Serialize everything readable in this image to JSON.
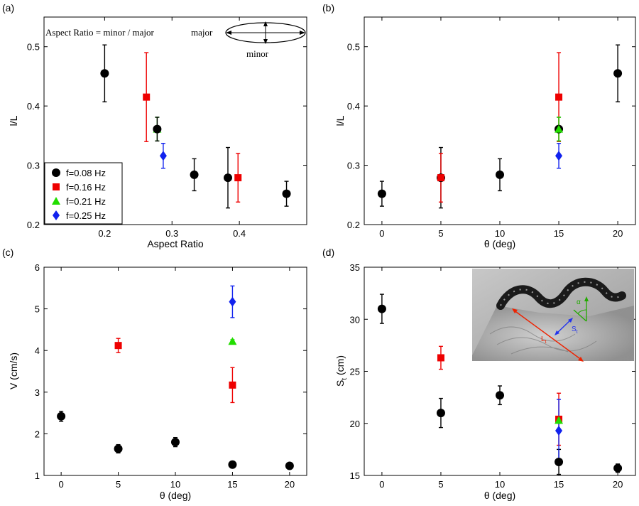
{
  "colors": {
    "c008": "#000000",
    "c016": "#ee0000",
    "c021": "#22dd00",
    "c025": "#1122ee"
  },
  "legend_entries": [
    {
      "label": "f=0.08 Hz",
      "color": "#000000",
      "marker": "circle"
    },
    {
      "label": "f=0.16 Hz",
      "color": "#ee0000",
      "marker": "square"
    },
    {
      "label": "f=0.21 Hz",
      "color": "#22dd00",
      "marker": "triangle"
    },
    {
      "label": "f=0.25 Hz",
      "color": "#1122ee",
      "marker": "diamond"
    }
  ],
  "annotation": {
    "formula": "Aspect Ratio = minor / major",
    "major": "major",
    "minor": "minor"
  },
  "inset": {
    "label_alpha": "α",
    "label_lt": "L",
    "label_lt_sub": "t",
    "label_st": "S",
    "label_st_sub": "t"
  },
  "chart_data": [
    {
      "panel": "(a)",
      "type": "scatter",
      "xlabel": "Aspect Ratio",
      "ylabel": "l/L",
      "xlim": [
        0.11,
        0.5
      ],
      "ylim": [
        0.2,
        0.55
      ],
      "xticks": [
        0.2,
        0.3,
        0.4
      ],
      "xticklabels": [
        "0.2",
        "0.3",
        "0.4"
      ],
      "yticks": [
        0.2,
        0.3,
        0.4,
        0.5
      ],
      "yticklabels": [
        "0.2",
        "0.3",
        "0.4",
        "0.5"
      ],
      "legend": "bottom-left",
      "series": [
        {
          "name": "f=0.08 Hz",
          "marker": "circle",
          "color": "#000000",
          "points": [
            {
              "x": 0.2,
              "y": 0.455,
              "err": 0.048
            },
            {
              "x": 0.333,
              "y": 0.284,
              "err": 0.027
            },
            {
              "x": 0.383,
              "y": 0.279,
              "err": 0.051
            },
            {
              "x": 0.47,
              "y": 0.252,
              "err": 0.021
            }
          ]
        },
        {
          "name": "f=0.16 Hz",
          "marker": "square",
          "color": "#ee0000",
          "points": [
            {
              "x": 0.262,
              "y": 0.415,
              "err": 0.075
            },
            {
              "x": 0.398,
              "y": 0.279,
              "err": 0.041
            }
          ]
        },
        {
          "name": "f=0.21 Hz",
          "marker": "triangle",
          "color": "#22dd00",
          "points": [
            {
              "x": 0.278,
              "y": 0.361,
              "err": 0.02
            }
          ]
        },
        {
          "name": "f=0.25 Hz",
          "marker": "diamond",
          "color": "#1122ee",
          "points": [
            {
              "x": 0.287,
              "y": 0.316,
              "err": 0.021
            }
          ]
        }
      ],
      "overlay_points": [
        {
          "x": 0.278,
          "y": 0.361,
          "err": 0.02,
          "color": "#000000",
          "marker": "circle"
        }
      ]
    },
    {
      "panel": "(b)",
      "type": "scatter",
      "xlabel": "θ (deg)",
      "ylabel": "l/L",
      "xlim": [
        -1.5,
        21.5
      ],
      "ylim": [
        0.2,
        0.55
      ],
      "xticks": [
        0,
        5,
        10,
        15,
        20
      ],
      "xticklabels": [
        "0",
        "5",
        "10",
        "15",
        "20"
      ],
      "yticks": [
        0.2,
        0.3,
        0.4,
        0.5
      ],
      "yticklabels": [
        "0.2",
        "0.3",
        "0.4",
        "0.5"
      ],
      "series": [
        {
          "name": "f=0.08 Hz",
          "marker": "circle",
          "color": "#000000",
          "points": [
            {
              "x": 0,
              "y": 0.252,
              "err": 0.021
            },
            {
              "x": 5,
              "y": 0.279,
              "err": 0.051
            },
            {
              "x": 10,
              "y": 0.284,
              "err": 0.027
            },
            {
              "x": 15,
              "y": 0.361,
              "err": 0.02
            },
            {
              "x": 20,
              "y": 0.455,
              "err": 0.048
            }
          ]
        },
        {
          "name": "f=0.16 Hz",
          "marker": "square",
          "color": "#ee0000",
          "points": [
            {
              "x": 5,
              "y": 0.279,
              "err": 0.041
            },
            {
              "x": 15,
              "y": 0.415,
              "err": 0.075
            }
          ]
        },
        {
          "name": "f=0.21 Hz",
          "marker": "triangle",
          "color": "#22dd00",
          "points": [
            {
              "x": 15,
              "y": 0.361,
              "err": 0.02
            }
          ]
        },
        {
          "name": "f=0.25 Hz",
          "marker": "diamond",
          "color": "#1122ee",
          "points": [
            {
              "x": 15,
              "y": 0.316,
              "err": 0.021
            }
          ]
        }
      ]
    },
    {
      "panel": "(c)",
      "type": "scatter",
      "xlabel": "θ (deg)",
      "ylabel": "V (cm/s)",
      "xlim": [
        -1.5,
        21.5
      ],
      "ylim": [
        1,
        6
      ],
      "xticks": [
        0,
        5,
        10,
        15,
        20
      ],
      "xticklabels": [
        "0",
        "5",
        "10",
        "15",
        "20"
      ],
      "yticks": [
        1,
        2,
        3,
        4,
        5,
        6
      ],
      "yticklabels": [
        "1",
        "2",
        "3",
        "4",
        "5",
        "6"
      ],
      "series": [
        {
          "name": "f=0.08 Hz",
          "marker": "circle",
          "color": "#000000",
          "points": [
            {
              "x": 0,
              "y": 2.42,
              "err": 0.12
            },
            {
              "x": 5,
              "y": 1.64,
              "err": 0.1
            },
            {
              "x": 10,
              "y": 1.8,
              "err": 0.11
            },
            {
              "x": 15,
              "y": 1.26,
              "err": 0.08
            },
            {
              "x": 20,
              "y": 1.23,
              "err": 0.04
            }
          ]
        },
        {
          "name": "f=0.16 Hz",
          "marker": "square",
          "color": "#ee0000",
          "points": [
            {
              "x": 5,
              "y": 4.12,
              "err": 0.17
            },
            {
              "x": 15,
              "y": 3.17,
              "err": 0.42
            }
          ]
        },
        {
          "name": "f=0.21 Hz",
          "marker": "triangle",
          "color": "#22dd00",
          "points": [
            {
              "x": 15,
              "y": 4.22,
              "err": 0.04
            }
          ]
        },
        {
          "name": "f=0.25 Hz",
          "marker": "diamond",
          "color": "#1122ee",
          "points": [
            {
              "x": 15,
              "y": 5.17,
              "err": 0.38
            }
          ]
        }
      ]
    },
    {
      "panel": "(d)",
      "type": "scatter",
      "xlabel": "θ (deg)",
      "ylabel": "S",
      "ylabel_sub": "t",
      "ylabel_unit": " (cm)",
      "xlim": [
        -1.5,
        21.5
      ],
      "ylim": [
        15,
        35
      ],
      "xticks": [
        0,
        5,
        10,
        15,
        20
      ],
      "xticklabels": [
        "0",
        "5",
        "10",
        "15",
        "20"
      ],
      "yticks": [
        15,
        20,
        25,
        30,
        35
      ],
      "yticklabels": [
        "15",
        "20",
        "25",
        "30",
        "35"
      ],
      "series": [
        {
          "name": "f=0.08 Hz",
          "marker": "circle",
          "color": "#000000",
          "points": [
            {
              "x": 0,
              "y": 31,
              "err": 1.4
            },
            {
              "x": 5,
              "y": 21,
              "err": 1.4
            },
            {
              "x": 10,
              "y": 22.7,
              "err": 0.9
            },
            {
              "x": 15,
              "y": 16.3,
              "err": 1.2
            },
            {
              "x": 20,
              "y": 15.7,
              "err": 0.4
            }
          ]
        },
        {
          "name": "f=0.16 Hz",
          "marker": "square",
          "color": "#ee0000",
          "points": [
            {
              "x": 5,
              "y": 26.3,
              "err": 1.1
            },
            {
              "x": 15,
              "y": 20.4,
              "err": 2.5
            }
          ]
        },
        {
          "name": "f=0.21 Hz",
          "marker": "triangle",
          "color": "#22dd00",
          "points": [
            {
              "x": 15,
              "y": 20.3,
              "err": 0.3
            }
          ]
        },
        {
          "name": "f=0.25 Hz",
          "marker": "diamond",
          "color": "#1122ee",
          "points": [
            {
              "x": 15,
              "y": 19.3,
              "err": 3.0
            }
          ]
        }
      ]
    }
  ]
}
